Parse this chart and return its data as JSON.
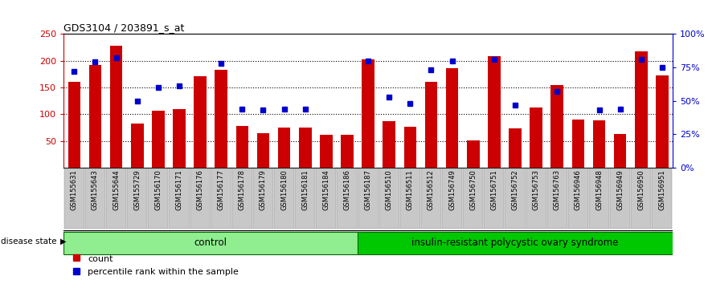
{
  "title": "GDS3104 / 203891_s_at",
  "samples": [
    "GSM155631",
    "GSM155643",
    "GSM155644",
    "GSM155729",
    "GSM156170",
    "GSM156171",
    "GSM156176",
    "GSM156177",
    "GSM156178",
    "GSM156179",
    "GSM156180",
    "GSM156181",
    "GSM156184",
    "GSM156186",
    "GSM156187",
    "GSM156510",
    "GSM156511",
    "GSM156512",
    "GSM156749",
    "GSM156750",
    "GSM156751",
    "GSM156752",
    "GSM156753",
    "GSM156763",
    "GSM156946",
    "GSM156948",
    "GSM156949",
    "GSM156950",
    "GSM156951"
  ],
  "counts": [
    160,
    192,
    228,
    83,
    107,
    110,
    171,
    183,
    78,
    65,
    75,
    75,
    62,
    61,
    202,
    87,
    76,
    161,
    186,
    51,
    209,
    74,
    113,
    155,
    90,
    89,
    63,
    217,
    172
  ],
  "percentile_ranks": [
    72,
    79,
    82,
    50,
    60,
    61,
    null,
    78,
    44,
    43,
    44,
    44,
    null,
    null,
    80,
    53,
    48,
    73,
    80,
    null,
    81,
    47,
    null,
    57,
    null,
    43,
    44,
    81,
    75
  ],
  "control_count": 14,
  "ylim_left": [
    0,
    250
  ],
  "ylim_right": [
    0,
    100
  ],
  "yticks_left": [
    50,
    100,
    150,
    200,
    250
  ],
  "ytick_labels_left": [
    "50",
    "100",
    "150",
    "200",
    "250"
  ],
  "ytick_labels_right": [
    "0%",
    "25%",
    "50%",
    "75%",
    "100%"
  ],
  "yticks_right": [
    0,
    25,
    50,
    75,
    100
  ],
  "bar_color": "#CC0000",
  "dot_color": "#0000CC",
  "control_facecolor": "#90EE90",
  "disease_facecolor": "#00C800",
  "tick_bg_color": "#C8C8C8",
  "control_label": "control",
  "disease_label": "insulin-resistant polycystic ovary syndrome",
  "legend_count_label": "count",
  "legend_pct_label": "percentile rank within the sample",
  "disease_state_label": "disease state"
}
